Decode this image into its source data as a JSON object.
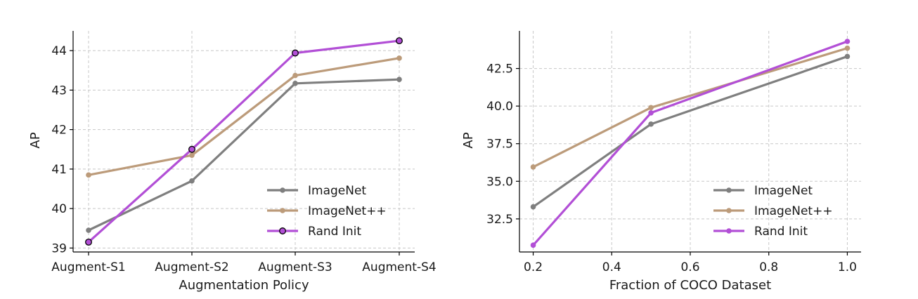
{
  "chart_data": [
    {
      "type": "line",
      "xlabel": "Augmentation Policy",
      "ylabel": "AP",
      "categories": [
        "Augment-S1",
        "Augment-S2",
        "Augment-S3",
        "Augment-S4"
      ],
      "ylim": [
        38.9,
        44.5
      ],
      "yticks": [
        39,
        40,
        41,
        42,
        43,
        44
      ],
      "grid": true,
      "legend_position": "lower-right",
      "series": [
        {
          "name": "ImageNet",
          "color": "#7f7f7f",
          "values": [
            39.45,
            40.7,
            43.17,
            43.27
          ],
          "marker_edge": "#7f7f7f"
        },
        {
          "name": "ImageNet++",
          "color": "#bc9b7a",
          "values": [
            40.85,
            41.35,
            43.37,
            43.81
          ],
          "marker_edge": "#bc9b7a"
        },
        {
          "name": "Rand Init",
          "color": "#b24fd6",
          "values": [
            39.15,
            41.5,
            43.94,
            44.25
          ],
          "marker_edge": "#000000"
        }
      ]
    },
    {
      "type": "line",
      "xlabel": "Fraction of COCO Dataset",
      "ylabel": "AP",
      "x": [
        0.2,
        0.5,
        1.0
      ],
      "xlim": [
        0.165,
        1.035
      ],
      "xticks": [
        0.2,
        0.4,
        0.6,
        0.8,
        1.0
      ],
      "xtick_labels": [
        "0.2",
        "0.4",
        "0.6",
        "0.8",
        "1.0"
      ],
      "ylim": [
        30.3,
        45.0
      ],
      "yticks": [
        32.5,
        35.0,
        37.5,
        40.0,
        42.5
      ],
      "ytick_labels": [
        "32.5",
        "35.0",
        "37.5",
        "40.0",
        "42.5"
      ],
      "grid": true,
      "legend_position": "lower-right",
      "series": [
        {
          "name": "ImageNet",
          "color": "#7f7f7f",
          "values": [
            33.3,
            38.8,
            43.3
          ]
        },
        {
          "name": "ImageNet++",
          "color": "#bc9b7a",
          "values": [
            35.95,
            39.9,
            43.85
          ]
        },
        {
          "name": "Rand Init",
          "color": "#b24fd6",
          "values": [
            30.75,
            39.55,
            44.3
          ]
        }
      ]
    }
  ]
}
